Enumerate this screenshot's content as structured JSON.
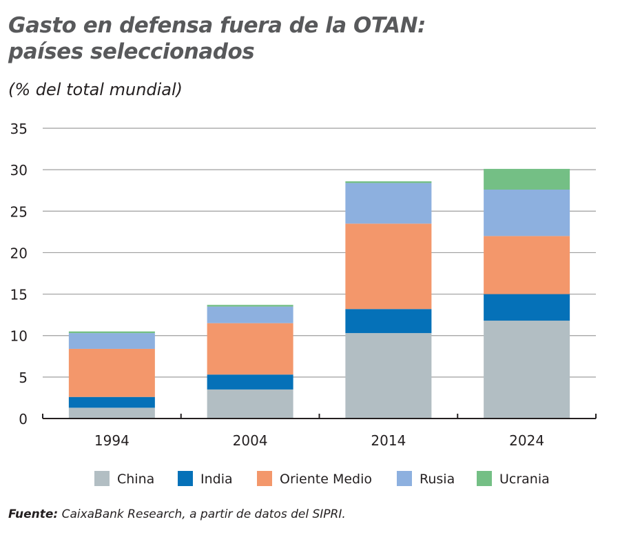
{
  "title_line1": "Gasto en defensa fuera de la OTAN:",
  "title_line2": "países seleccionados",
  "subtitle": "(% del total mundial)",
  "source_label": "Fuente:",
  "source_text": " CaixaBank Research, a partir de datos del SIPRI.",
  "chart_data": {
    "type": "bar",
    "stacked": true,
    "title": "Gasto en defensa fuera de la OTAN: países seleccionados",
    "ylabel": "(% del total mundial)",
    "categories": [
      "1994",
      "2004",
      "2014",
      "2024"
    ],
    "ylim": [
      0,
      35
    ],
    "yticks": [
      0,
      5,
      10,
      15,
      20,
      25,
      30,
      35
    ],
    "grid": true,
    "legend": "bottom",
    "series": [
      {
        "name": "China",
        "color": "#b2bec3",
        "values": [
          1.3,
          3.5,
          10.3,
          11.8
        ]
      },
      {
        "name": "India",
        "color": "#0571b8",
        "values": [
          1.3,
          1.8,
          2.9,
          3.2
        ]
      },
      {
        "name": "Oriente Medio",
        "color": "#f3976b",
        "values": [
          5.8,
          6.2,
          10.3,
          7.0
        ]
      },
      {
        "name": "Rusia",
        "color": "#8db0df",
        "values": [
          1.9,
          2.0,
          4.9,
          5.6
        ]
      },
      {
        "name": "Ucrania",
        "color": "#74bf85",
        "values": [
          0.2,
          0.2,
          0.2,
          2.5
        ]
      }
    ]
  }
}
